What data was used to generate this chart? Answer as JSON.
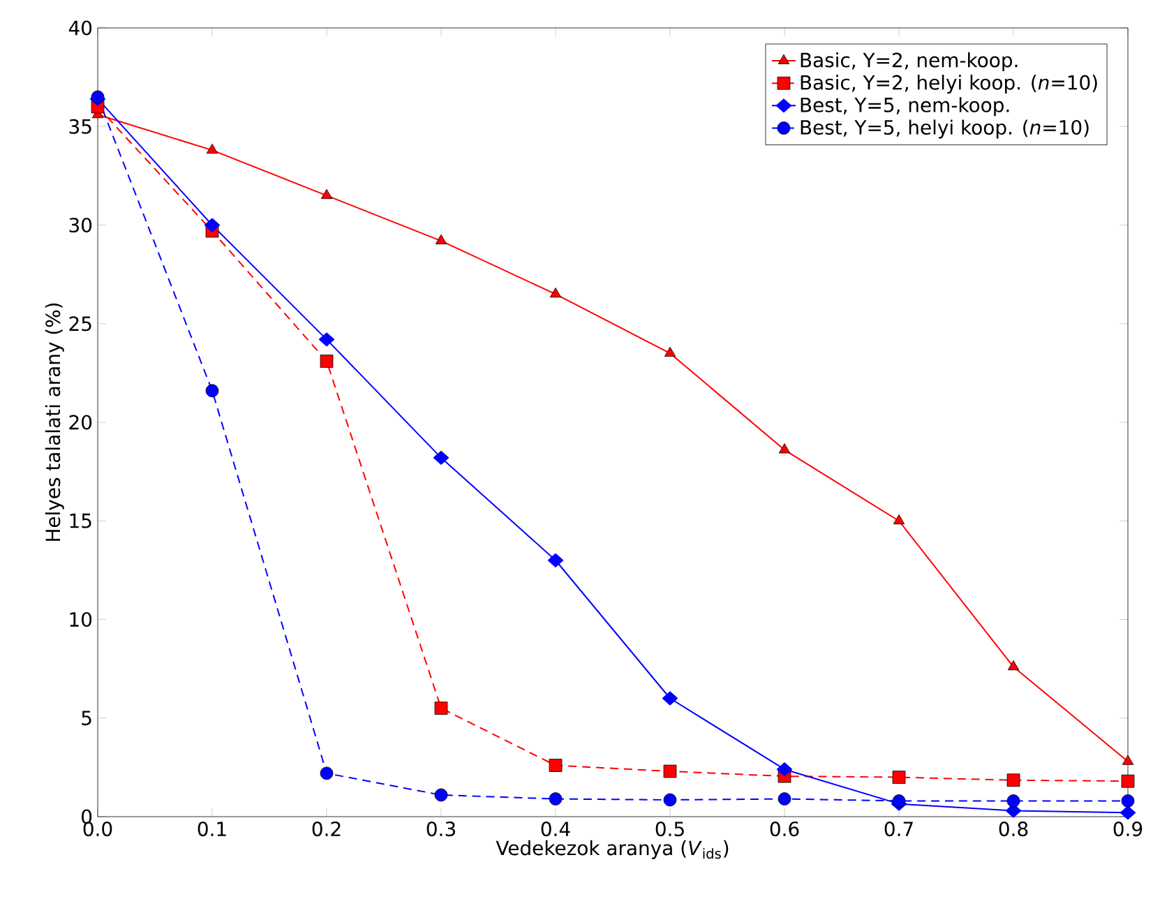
{
  "chart_data": {
    "type": "line",
    "xlabel": "Vedekezok aranya (*V*$_{ids}$)",
    "ylabel": "Helyes talalati arany (%)",
    "x": [
      0.0,
      0.1,
      0.2,
      0.3,
      0.4,
      0.5,
      0.6,
      0.7,
      0.8,
      0.9
    ],
    "series": [
      {
        "name": "Basic, Y=2, nem-koop.",
        "color": "#ff0000",
        "marker": "triangle",
        "line_style": "solid",
        "values": [
          35.6,
          33.8,
          31.5,
          29.2,
          26.5,
          23.5,
          18.6,
          15.0,
          7.6,
          2.8
        ]
      },
      {
        "name": "Basic, Y=2, helyi koop. (*n*=10)",
        "color": "#ff0000",
        "marker": "square",
        "line_style": "dashed",
        "values": [
          36.0,
          29.7,
          23.1,
          5.5,
          2.6,
          2.3,
          2.05,
          2.0,
          1.85,
          1.8
        ]
      },
      {
        "name": "Best, Y=5, nem-koop.",
        "color": "#0000ff",
        "marker": "diamond",
        "line_style": "solid",
        "values": [
          36.4,
          30.0,
          24.2,
          18.2,
          13.0,
          6.0,
          2.4,
          0.65,
          0.3,
          0.2
        ]
      },
      {
        "name": "Best, Y=5, helyi koop. (*n*=10)",
        "color": "#0000ff",
        "marker": "circle",
        "line_style": "dashed",
        "values": [
          36.5,
          21.6,
          2.2,
          1.1,
          0.9,
          0.85,
          0.9,
          0.8,
          0.8,
          0.8
        ]
      }
    ],
    "xlim": [
      0.0,
      0.9
    ],
    "ylim": [
      0,
      40
    ],
    "xticks": [
      {
        "value": 0.0,
        "label": "0.0"
      },
      {
        "value": 0.1,
        "label": "0.1"
      },
      {
        "value": 0.2,
        "label": "0.2"
      },
      {
        "value": 0.3,
        "label": "0.3"
      },
      {
        "value": 0.4,
        "label": "0.4"
      },
      {
        "value": 0.5,
        "label": "0.5"
      },
      {
        "value": 0.6,
        "label": "0.6"
      },
      {
        "value": 0.7,
        "label": "0.7"
      },
      {
        "value": 0.8,
        "label": "0.8"
      },
      {
        "value": 0.9,
        "label": "0.9"
      }
    ],
    "yticks": [
      0,
      5,
      10,
      15,
      20,
      25,
      30,
      35,
      40
    ],
    "grid": false,
    "legend": "top right"
  }
}
